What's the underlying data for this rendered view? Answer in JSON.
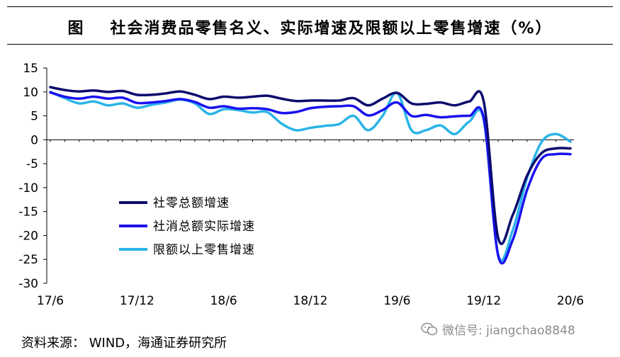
{
  "header": {
    "figure_label": "图",
    "title": "社会消费品零售名义、实际增速及限额以上零售增速（%）"
  },
  "footer": {
    "source": "资料来源：  WIND，海通证券研究所",
    "watermark": "微信号: jiangchao8848"
  },
  "icons": {
    "watermark": "wechat-icon"
  },
  "chart_data": {
    "type": "line",
    "title": "",
    "xlabel": "",
    "ylabel": "",
    "ylim": [
      -30,
      15
    ],
    "yticks": [
      15,
      10,
      5,
      0,
      -5,
      -10,
      -15,
      -20,
      -25,
      -30
    ],
    "x_tick_labels": [
      "17/6",
      "17/12",
      "18/6",
      "18/12",
      "19/6",
      "19/12",
      "20/6"
    ],
    "x": [
      "17/6",
      "17/7",
      "17/8",
      "17/9",
      "17/10",
      "17/11",
      "17/12",
      "18/1",
      "18/2",
      "18/3",
      "18/4",
      "18/5",
      "18/6",
      "18/7",
      "18/8",
      "18/9",
      "18/10",
      "18/11",
      "18/12",
      "19/1",
      "19/2",
      "19/3",
      "19/4",
      "19/5",
      "19/6",
      "19/7",
      "19/8",
      "19/9",
      "19/10",
      "19/11",
      "19/12",
      "20/1",
      "20/2",
      "20/3",
      "20/4",
      "20/5",
      "20/6"
    ],
    "grid": false,
    "legend_position": "lower-left",
    "series": [
      {
        "name": "社零总额增速",
        "color": "#0b0b6e",
        "values": [
          11.0,
          10.4,
          10.1,
          10.3,
          10.0,
          10.2,
          9.4,
          9.4,
          9.7,
          10.1,
          9.4,
          8.5,
          9.0,
          8.8,
          9.0,
          9.2,
          8.6,
          8.1,
          8.2,
          8.2,
          8.2,
          8.7,
          7.2,
          8.6,
          9.8,
          7.6,
          7.5,
          7.8,
          7.2,
          8.0,
          8.0,
          -20.5,
          -15.8,
          -7.5,
          -2.8,
          -1.8,
          -1.8
        ]
      },
      {
        "name": "社消总额实际增速",
        "color": "#1a12f0",
        "values": [
          9.9,
          9.0,
          8.6,
          9.0,
          8.6,
          8.8,
          7.7,
          7.8,
          8.1,
          8.5,
          7.9,
          6.7,
          7.0,
          6.5,
          6.6,
          6.4,
          5.6,
          5.8,
          6.6,
          6.9,
          7.0,
          7.0,
          5.1,
          6.2,
          7.8,
          5.0,
          5.2,
          4.7,
          4.9,
          5.0,
          4.5,
          -24.2,
          -21.0,
          -10.5,
          -4.0,
          -3.0,
          -3.0
        ]
      },
      {
        "name": "限额以上零售增速",
        "color": "#2ab4e8",
        "values": [
          10.0,
          8.7,
          7.6,
          8.0,
          7.2,
          7.6,
          6.7,
          7.3,
          7.8,
          8.4,
          7.6,
          5.4,
          6.4,
          6.2,
          5.7,
          5.8,
          3.4,
          2.0,
          2.5,
          2.9,
          3.3,
          5.0,
          2.0,
          5.0,
          9.8,
          2.0,
          2.0,
          3.0,
          1.2,
          3.8,
          4.2,
          -24.0,
          -19.0,
          -8.0,
          -0.5,
          1.2,
          -0.4
        ]
      }
    ]
  }
}
